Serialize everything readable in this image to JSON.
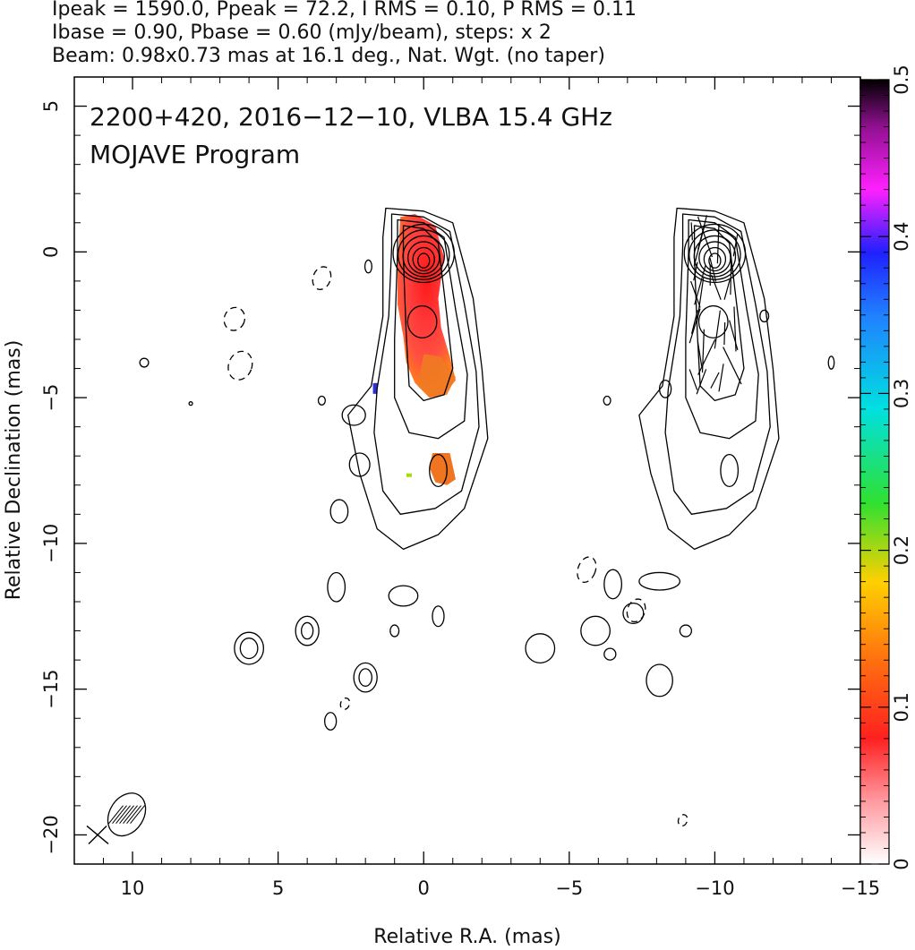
{
  "header": {
    "line1": "Ipeak = 1590.0, Ppeak = 72.2, I RMS = 0.10, P RMS = 0.11",
    "line2": "Ibase = 0.90, Pbase = 0.60 (mJy/beam), steps: x 2",
    "line3": "Beam: 0.98x0.73 mas at 16.1 deg., Nat. Wgt. (no taper)"
  },
  "chart_data": {
    "type": "heatmap",
    "title": "2200+420, 2016−12−10, VLBA 15.4 GHz",
    "subtitle": "MOJAVE Program",
    "xlabel": "Relative R.A. (mas)",
    "ylabel": "Relative Declination (mas)",
    "xlim": [
      12,
      -15
    ],
    "ylim": [
      -21,
      6
    ],
    "x_ticks": [
      {
        "value": 10,
        "label": "10"
      },
      {
        "value": 5,
        "label": "5"
      },
      {
        "value": 0,
        "label": "0"
      },
      {
        "value": -5,
        "label": "−5"
      },
      {
        "value": -10,
        "label": "−10"
      },
      {
        "value": -15,
        "label": "−15"
      }
    ],
    "y_ticks": [
      {
        "value": 5,
        "label": "5"
      },
      {
        "value": 0,
        "label": "0"
      },
      {
        "value": -5,
        "label": "−5"
      },
      {
        "value": -10,
        "label": "−10"
      },
      {
        "value": -15,
        "label": "−15"
      },
      {
        "value": -20,
        "label": "−20"
      }
    ],
    "colorbar": {
      "range": [
        0,
        0.5
      ],
      "ticks": [
        {
          "value": 0,
          "label": "0"
        },
        {
          "value": 0.1,
          "label": "0.1"
        },
        {
          "value": 0.2,
          "label": "0.2"
        },
        {
          "value": 0.3,
          "label": "0.3"
        },
        {
          "value": 0.4,
          "label": "0.4"
        },
        {
          "value": 0.5,
          "label": "0.5"
        }
      ]
    },
    "left_panel_center": {
      "ra": 0,
      "dec": 0
    },
    "right_panel_center": {
      "ra": -10,
      "dec": 0
    },
    "beam": {
      "major_mas": 0.98,
      "minor_mas": 0.73,
      "pa_deg": 16.1,
      "ra": 10.2,
      "dec": -19.3
    }
  },
  "colors": {
    "contour": "#000000",
    "frame": "#000000",
    "polarization_core": "#e8262a",
    "polarization_tail": "#f07020"
  }
}
